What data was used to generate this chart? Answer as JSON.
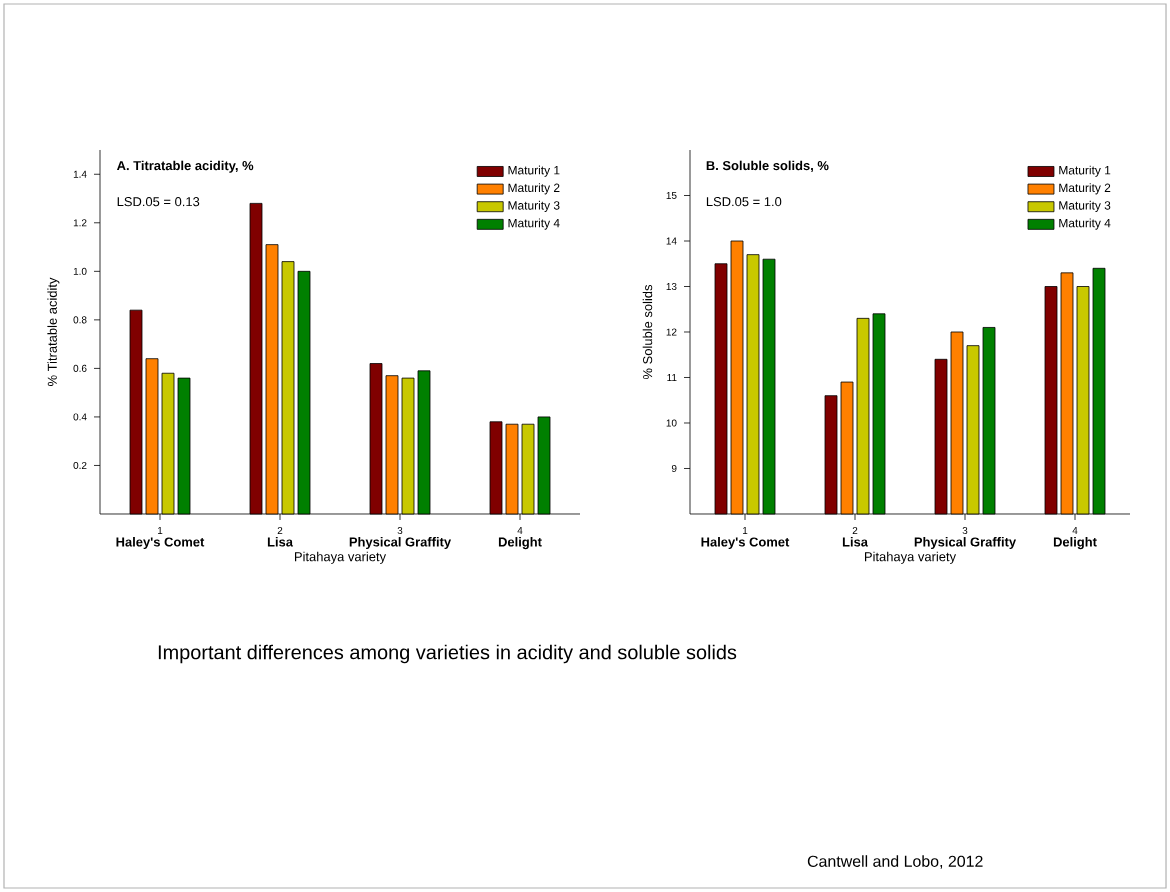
{
  "chart_data": [
    {
      "type": "bar",
      "title": "A. Titratable acidity, %",
      "xlabel": "Pitahaya variety",
      "ylabel": "% Titratable acidity",
      "categories": [
        "1",
        "2",
        "3",
        "4"
      ],
      "series": [
        {
          "name": "Maturity 1",
          "color": "#800000",
          "values": [
            0.84,
            1.28,
            0.62,
            0.38
          ]
        },
        {
          "name": "Maturity 2",
          "color": "#ff8000",
          "values": [
            0.64,
            1.11,
            0.57,
            0.37
          ]
        },
        {
          "name": "Maturity 3",
          "color": "#c8c800",
          "values": [
            0.58,
            1.04,
            0.56,
            0.37
          ]
        },
        {
          "name": "Maturity 4",
          "color": "#008000",
          "values": [
            0.56,
            1.0,
            0.59,
            0.4
          ]
        }
      ],
      "ylim": [
        0,
        1.5
      ],
      "yticks": [
        0.2,
        0.4,
        0.6,
        0.8,
        {
          "value": 1.0,
          "label": "1.0"
        },
        1.2,
        1.4
      ],
      "legend": "top right",
      "annotations": [
        "LSD.05 = 0.13",
        "Haley's Comet",
        "Lisa",
        "Physical Graffity",
        "Delight",
        "Important differences among varieties in acidity and soluble solids",
        "Cantwell and Lobo, 2012"
      ]
    },
    {
      "type": "bar",
      "title": "B. Soluble solids, %",
      "xlabel": "Pitahaya variety",
      "ylabel": "% Soluble solids",
      "categories": [
        "1",
        "2",
        "3",
        "4"
      ],
      "series": [
        {
          "name": "Maturity 1",
          "color": "#800000",
          "values": [
            13.5,
            10.6,
            11.4,
            13.0
          ]
        },
        {
          "name": "Maturity 2",
          "color": "#ff8000",
          "values": [
            14.0,
            10.9,
            12.0,
            13.3
          ]
        },
        {
          "name": "Maturity 3",
          "color": "#c8c800",
          "values": [
            13.7,
            12.3,
            11.7,
            13.0
          ]
        },
        {
          "name": "Maturity 4",
          "color": "#008000",
          "values": [
            13.6,
            12.4,
            12.1,
            13.4
          ]
        }
      ],
      "ylim": [
        8,
        16
      ],
      "yticks": [
        9,
        10,
        11,
        12,
        13,
        14,
        15
      ],
      "legend": "top right",
      "annotations": [
        "LSD.05 = 1.0",
        "Haley's Comet",
        "Lisa",
        "Physical Graffity",
        "Delight"
      ]
    }
  ]
}
